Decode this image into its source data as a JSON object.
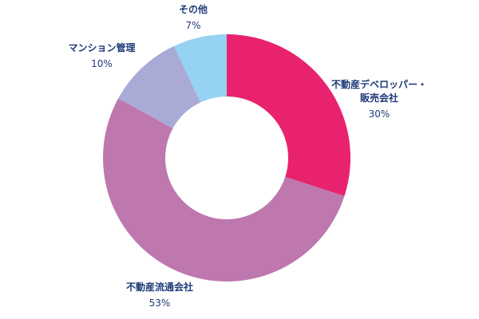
{
  "chart_data": {
    "type": "pie",
    "style": "donut",
    "slices": [
      {
        "label": "不動産デベロッパー・販売会社",
        "label_lines": [
          "不動産デベロッパー・",
          "販売会社"
        ],
        "value": 30,
        "value_label": "30%",
        "color": "#e8226e"
      },
      {
        "label": "不動産流通会社",
        "label_lines": [
          "不動産流通会社"
        ],
        "value": 53,
        "value_label": "53%",
        "color": "#be78ae"
      },
      {
        "label": "マンション管理",
        "label_lines": [
          "マンション管理"
        ],
        "value": 10,
        "value_label": "10%",
        "color": "#aaaad6"
      },
      {
        "label": "その他",
        "label_lines": [
          "その他"
        ],
        "value": 7,
        "value_label": "7%",
        "color": "#96d2f2"
      }
    ],
    "start": "12 o'clock",
    "direction": "clockwise",
    "legend": "none"
  }
}
